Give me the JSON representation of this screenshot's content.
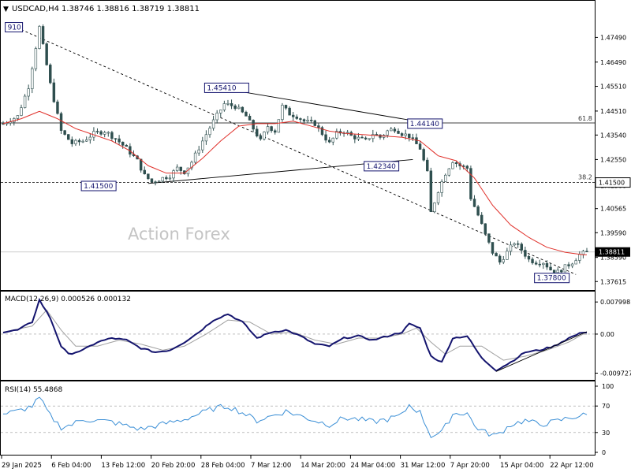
{
  "header": {
    "symbol": "USDCAD,H4",
    "ohlc": "1.38746 1.38816 1.38719 1.38811"
  },
  "watermark": "Action Forex",
  "colors": {
    "candles": "#2f4f4f",
    "moving_average": "#e0302a",
    "macd_main": "#14146e",
    "macd_signal": "#a0a0a0",
    "rsi_line": "#3b8fd6",
    "grid_dashed": "#999999",
    "box_border": "#14146e",
    "label_text": "#14146e",
    "current_price_box": "#000000"
  },
  "chart_data": [
    {
      "type": "candlestick",
      "panel": "price",
      "ylim": [
        1.374,
        1.483
      ],
      "y_ticks": [
        "1.47490",
        "1.46490",
        "1.45510",
        "1.44510",
        "1.43540",
        "1.42550",
        "1.41500",
        "1.40565",
        "1.39590",
        "1.38590",
        "1.37615"
      ],
      "x_labels": [
        "29 Jan 2025",
        "6 Feb 04:00",
        "13 Feb 12:00",
        "20 Feb 20:00",
        "28 Feb 04:00",
        "7 Mar 12:00",
        "14 Mar 20:00",
        "24 Mar 04:00",
        "31 Mar 12:00",
        "7 Apr 20:00",
        "15 Apr 04:00",
        "22 Apr 12:00"
      ],
      "current_price": "1.38811",
      "close_path": [
        [
          0,
          1.44
        ],
        [
          4,
          1.443
        ],
        [
          7,
          1.455
        ],
        [
          10,
          1.479
        ],
        [
          13,
          1.456
        ],
        [
          16,
          1.437
        ],
        [
          19,
          1.432
        ],
        [
          22,
          1.433
        ],
        [
          25,
          1.436
        ],
        [
          28,
          1.437
        ],
        [
          31,
          1.434
        ],
        [
          34,
          1.43
        ],
        [
          37,
          1.425
        ],
        [
          39,
          1.419
        ],
        [
          41,
          1.4165
        ],
        [
          43,
          1.4175
        ],
        [
          46,
          1.419
        ],
        [
          48,
          1.422
        ],
        [
          50,
          1.4205
        ],
        [
          52,
          1.4245
        ],
        [
          55,
          1.433
        ],
        [
          58,
          1.441
        ],
        [
          61,
          1.448
        ],
        [
          64,
          1.447
        ],
        [
          67,
          1.443
        ],
        [
          69,
          1.438
        ],
        [
          71,
          1.433
        ],
        [
          73,
          1.439
        ],
        [
          75,
          1.437
        ],
        [
          77,
          1.447
        ],
        [
          79,
          1.444
        ],
        [
          81,
          1.443
        ],
        [
          83,
          1.441
        ],
        [
          86,
          1.44
        ],
        [
          88,
          1.436
        ],
        [
          90,
          1.432
        ],
        [
          92,
          1.436
        ],
        [
          94,
          1.437
        ],
        [
          96,
          1.435
        ],
        [
          98,
          1.434
        ],
        [
          100,
          1.433
        ],
        [
          102,
          1.436
        ],
        [
          104,
          1.4345
        ],
        [
          106,
          1.437
        ],
        [
          108,
          1.438
        ],
        [
          110,
          1.436
        ],
        [
          112,
          1.435
        ],
        [
          115,
          1.43
        ],
        [
          117,
          1.42
        ],
        [
          118,
          1.404
        ],
        [
          120,
          1.413
        ],
        [
          122,
          1.42
        ],
        [
          124,
          1.425
        ],
        [
          126,
          1.423
        ],
        [
          128,
          1.422
        ],
        [
          129,
          1.41
        ],
        [
          131,
          1.403
        ],
        [
          133,
          1.395
        ],
        [
          135,
          1.388
        ],
        [
          137,
          1.384
        ],
        [
          139,
          1.388
        ],
        [
          141,
          1.392
        ],
        [
          143,
          1.389
        ],
        [
          145,
          1.385
        ],
        [
          147,
          1.384
        ],
        [
          149,
          1.384
        ],
        [
          151,
          1.381
        ],
        [
          153,
          1.38
        ],
        [
          155,
          1.382
        ],
        [
          157,
          1.384
        ],
        [
          159,
          1.387
        ],
        [
          161,
          1.3881
        ]
      ],
      "moving_average_path": [
        [
          0,
          1.44
        ],
        [
          5,
          1.442
        ],
        [
          10,
          1.445
        ],
        [
          15,
          1.442
        ],
        [
          20,
          1.438
        ],
        [
          25,
          1.4355
        ],
        [
          30,
          1.433
        ],
        [
          35,
          1.429
        ],
        [
          40,
          1.423
        ],
        [
          45,
          1.42
        ],
        [
          50,
          1.42
        ],
        [
          55,
          1.426
        ],
        [
          60,
          1.433
        ],
        [
          65,
          1.439
        ],
        [
          70,
          1.44
        ],
        [
          75,
          1.44
        ],
        [
          80,
          1.441
        ],
        [
          85,
          1.439
        ],
        [
          90,
          1.437
        ],
        [
          95,
          1.436
        ],
        [
          100,
          1.4355
        ],
        [
          105,
          1.435
        ],
        [
          110,
          1.4345
        ],
        [
          115,
          1.433
        ],
        [
          120,
          1.427
        ],
        [
          125,
          1.425
        ],
        [
          130,
          1.418
        ],
        [
          135,
          1.407
        ],
        [
          140,
          1.399
        ],
        [
          145,
          1.394
        ],
        [
          150,
          1.39
        ],
        [
          155,
          1.388
        ],
        [
          160,
          1.387
        ]
      ],
      "annotations": [
        {
          "label": "910",
          "kind": "box"
        },
        {
          "label": "1.45410",
          "kind": "box"
        },
        {
          "label": "1.44140",
          "kind": "box"
        },
        {
          "label": "1.42340",
          "kind": "box"
        },
        {
          "label": "1.41500",
          "kind": "box"
        },
        {
          "label": "1.37800",
          "kind": "box"
        },
        {
          "label": "61.8",
          "kind": "fib"
        },
        {
          "label": "38.2",
          "kind": "fib"
        },
        {
          "label": "1.41500",
          "kind": "price-box"
        }
      ]
    },
    {
      "type": "line",
      "panel": "macd",
      "title": "MACD(12,26,9) 0.000526 0.000132",
      "ylim": [
        -0.011,
        0.0098
      ],
      "y_ticks": [
        "0.007998",
        "0.00",
        "-0.009727"
      ],
      "macd_path": [
        [
          0,
          0.0005
        ],
        [
          4,
          0.001
        ],
        [
          8,
          0.003
        ],
        [
          10,
          0.0085
        ],
        [
          13,
          0.004
        ],
        [
          16,
          -0.003
        ],
        [
          18,
          -0.005
        ],
        [
          22,
          -0.004
        ],
        [
          26,
          -0.002
        ],
        [
          30,
          -0.001
        ],
        [
          34,
          -0.0015
        ],
        [
          38,
          -0.0035
        ],
        [
          42,
          -0.0045
        ],
        [
          46,
          -0.004
        ],
        [
          50,
          -0.002
        ],
        [
          54,
          0.0005
        ],
        [
          58,
          0.0035
        ],
        [
          62,
          0.005
        ],
        [
          66,
          0.003
        ],
        [
          70,
          -0.001
        ],
        [
          74,
          0.0005
        ],
        [
          78,
          0.001
        ],
        [
          82,
          -0.0005
        ],
        [
          86,
          -0.0025
        ],
        [
          90,
          -0.003
        ],
        [
          94,
          -0.001
        ],
        [
          98,
          -0.0005
        ],
        [
          102,
          -0.0015
        ],
        [
          106,
          -0.0005
        ],
        [
          110,
          0.0005
        ],
        [
          112,
          0.0025
        ],
        [
          115,
          0.0015
        ],
        [
          118,
          -0.0055
        ],
        [
          121,
          -0.007
        ],
        [
          124,
          -0.001
        ],
        [
          128,
          -0.0005
        ],
        [
          132,
          -0.006
        ],
        [
          136,
          -0.009
        ],
        [
          140,
          -0.007
        ],
        [
          144,
          -0.0045
        ],
        [
          148,
          -0.004
        ],
        [
          152,
          -0.003
        ],
        [
          156,
          -0.001
        ],
        [
          160,
          0.0005
        ]
      ],
      "signal_path": [
        [
          0,
          0.0005
        ],
        [
          8,
          0.002
        ],
        [
          12,
          0.006
        ],
        [
          16,
          0.001
        ],
        [
          20,
          -0.003
        ],
        [
          26,
          -0.003
        ],
        [
          32,
          -0.0015
        ],
        [
          38,
          -0.0025
        ],
        [
          44,
          -0.004
        ],
        [
          50,
          -0.003
        ],
        [
          56,
          0.0
        ],
        [
          62,
          0.0035
        ],
        [
          68,
          0.003
        ],
        [
          74,
          0.0
        ],
        [
          80,
          0.0005
        ],
        [
          86,
          -0.0015
        ],
        [
          92,
          -0.0025
        ],
        [
          98,
          -0.001
        ],
        [
          104,
          -0.001
        ],
        [
          110,
          0.0
        ],
        [
          114,
          0.0015
        ],
        [
          118,
          -0.002
        ],
        [
          122,
          -0.005
        ],
        [
          126,
          -0.003
        ],
        [
          132,
          -0.003
        ],
        [
          138,
          -0.0065
        ],
        [
          144,
          -0.0055
        ],
        [
          150,
          -0.004
        ],
        [
          156,
          -0.002
        ],
        [
          160,
          0.0
        ]
      ]
    },
    {
      "type": "line",
      "panel": "rsi",
      "title": "RSI(14) 55.4868",
      "ylim": [
        0,
        100
      ],
      "y_ticks": [
        "100",
        "70",
        "30",
        "0"
      ],
      "rsi_path": [
        [
          0,
          58
        ],
        [
          4,
          62
        ],
        [
          8,
          70
        ],
        [
          10,
          82
        ],
        [
          13,
          55
        ],
        [
          16,
          38
        ],
        [
          19,
          42
        ],
        [
          22,
          50
        ],
        [
          26,
          48
        ],
        [
          30,
          46
        ],
        [
          34,
          40
        ],
        [
          38,
          35
        ],
        [
          42,
          40
        ],
        [
          46,
          45
        ],
        [
          50,
          50
        ],
        [
          54,
          58
        ],
        [
          58,
          66
        ],
        [
          62,
          70
        ],
        [
          66,
          60
        ],
        [
          70,
          48
        ],
        [
          74,
          55
        ],
        [
          78,
          62
        ],
        [
          82,
          55
        ],
        [
          86,
          48
        ],
        [
          90,
          42
        ],
        [
          94,
          52
        ],
        [
          98,
          50
        ],
        [
          102,
          46
        ],
        [
          106,
          50
        ],
        [
          110,
          56
        ],
        [
          112,
          72
        ],
        [
          115,
          60
        ],
        [
          118,
          25
        ],
        [
          121,
          30
        ],
        [
          124,
          58
        ],
        [
          128,
          60
        ],
        [
          130,
          40
        ],
        [
          133,
          30
        ],
        [
          136,
          25
        ],
        [
          140,
          42
        ],
        [
          144,
          48
        ],
        [
          148,
          42
        ],
        [
          152,
          46
        ],
        [
          156,
          52
        ],
        [
          160,
          56
        ]
      ]
    }
  ]
}
